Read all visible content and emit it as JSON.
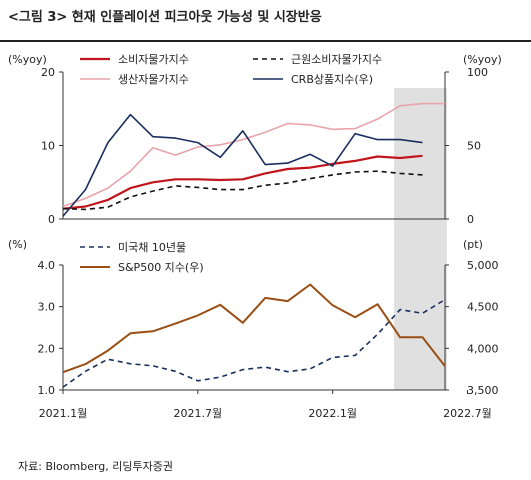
{
  "figure_title": "<그림 3> 현재 인플레이션 피크아웃 가능성 및 시장반응",
  "source": "자료: Bloomberg, 리딩투자증권",
  "chart_data": [
    {
      "type": "line",
      "panel": "top",
      "x": [
        "2021-01",
        "2021-02",
        "2021-03",
        "2021-04",
        "2021-05",
        "2021-06",
        "2021-07",
        "2021-08",
        "2021-09",
        "2021-10",
        "2021-11",
        "2021-12",
        "2022-01",
        "2022-02",
        "2022-03",
        "2022-04",
        "2022-05",
        "2022-06"
      ],
      "left_axis": {
        "unit": "(%yoy)",
        "ylim": [
          0,
          20
        ],
        "ticks": [
          "0",
          "10",
          "20"
        ]
      },
      "right_axis": {
        "unit": "(%yoy)",
        "ylim": [
          0,
          100
        ],
        "ticks": [
          "0",
          "50",
          "100"
        ]
      },
      "series": [
        {
          "name": "소비자물가지수",
          "axis": "left",
          "color": "#c0151b",
          "dash": "",
          "width": 2.2,
          "values": [
            1.4,
            1.7,
            2.6,
            4.2,
            5.0,
            5.4,
            5.4,
            5.3,
            5.4,
            6.2,
            6.8,
            7.0,
            7.5,
            7.9,
            8.5,
            8.3,
            8.6,
            null
          ]
        },
        {
          "name": "근원소비자물가지수",
          "axis": "left",
          "color": "#111111",
          "dash": "5,4",
          "width": 1.6,
          "values": [
            1.4,
            1.3,
            1.6,
            3.0,
            3.8,
            4.5,
            4.3,
            4.0,
            4.0,
            4.6,
            4.9,
            5.5,
            6.0,
            6.4,
            6.5,
            6.2,
            6.0,
            null
          ]
        },
        {
          "name": "생산자물가지수",
          "axis": "left",
          "color": "#e8a4aa",
          "dash": "",
          "width": 1.6,
          "values": [
            1.7,
            2.8,
            4.2,
            6.5,
            9.7,
            8.7,
            9.8,
            10.1,
            10.8,
            11.8,
            13.0,
            12.8,
            12.2,
            12.3,
            13.6,
            15.4,
            15.7,
            15.7
          ]
        },
        {
          "name": "CRB상품지수(우)",
          "axis": "right",
          "color": "#1b2f5e",
          "dash": "",
          "width": 1.6,
          "values": [
            2,
            20,
            52,
            71,
            56,
            55,
            52,
            42,
            60,
            37,
            38,
            44,
            36,
            58,
            54,
            54,
            52,
            null
          ]
        }
      ]
    },
    {
      "type": "line",
      "panel": "bottom",
      "x_ticks": [
        "2021.1월",
        "2021.7월",
        "2022.1월",
        "2022.7월"
      ],
      "left_axis": {
        "unit": "(%)",
        "ylim": [
          1.0,
          4.0
        ],
        "ticks": [
          "1.0",
          "2.0",
          "3.0",
          "4.0"
        ]
      },
      "right_axis": {
        "unit": "(pt)",
        "ylim": [
          3500,
          5000
        ],
        "ticks": [
          "3,500",
          "4,000",
          "4,500",
          "5,000"
        ]
      },
      "series": [
        {
          "name": "미국채 10년물",
          "axis": "left",
          "color": "#1b2f5e",
          "dash": "5,4",
          "width": 1.6,
          "values": [
            1.07,
            1.45,
            1.74,
            1.63,
            1.58,
            1.45,
            1.22,
            1.31,
            1.49,
            1.55,
            1.44,
            1.51,
            1.78,
            1.83,
            2.34,
            2.93,
            2.84,
            3.17
          ]
        },
        {
          "name": "S&P500 지수(우)",
          "axis": "right",
          "color": "#9a4f15",
          "dash": "",
          "width": 2.0,
          "values": [
            3714,
            3811,
            3973,
            4181,
            4204,
            4297,
            4395,
            4522,
            4307,
            4605,
            4567,
            4766,
            4516,
            4374,
            4530,
            4132,
            4132,
            3785
          ]
        }
      ],
      "highlight": {
        "from": "2022-04",
        "to": "2022-06",
        "color": "#e0e0e0"
      }
    }
  ]
}
